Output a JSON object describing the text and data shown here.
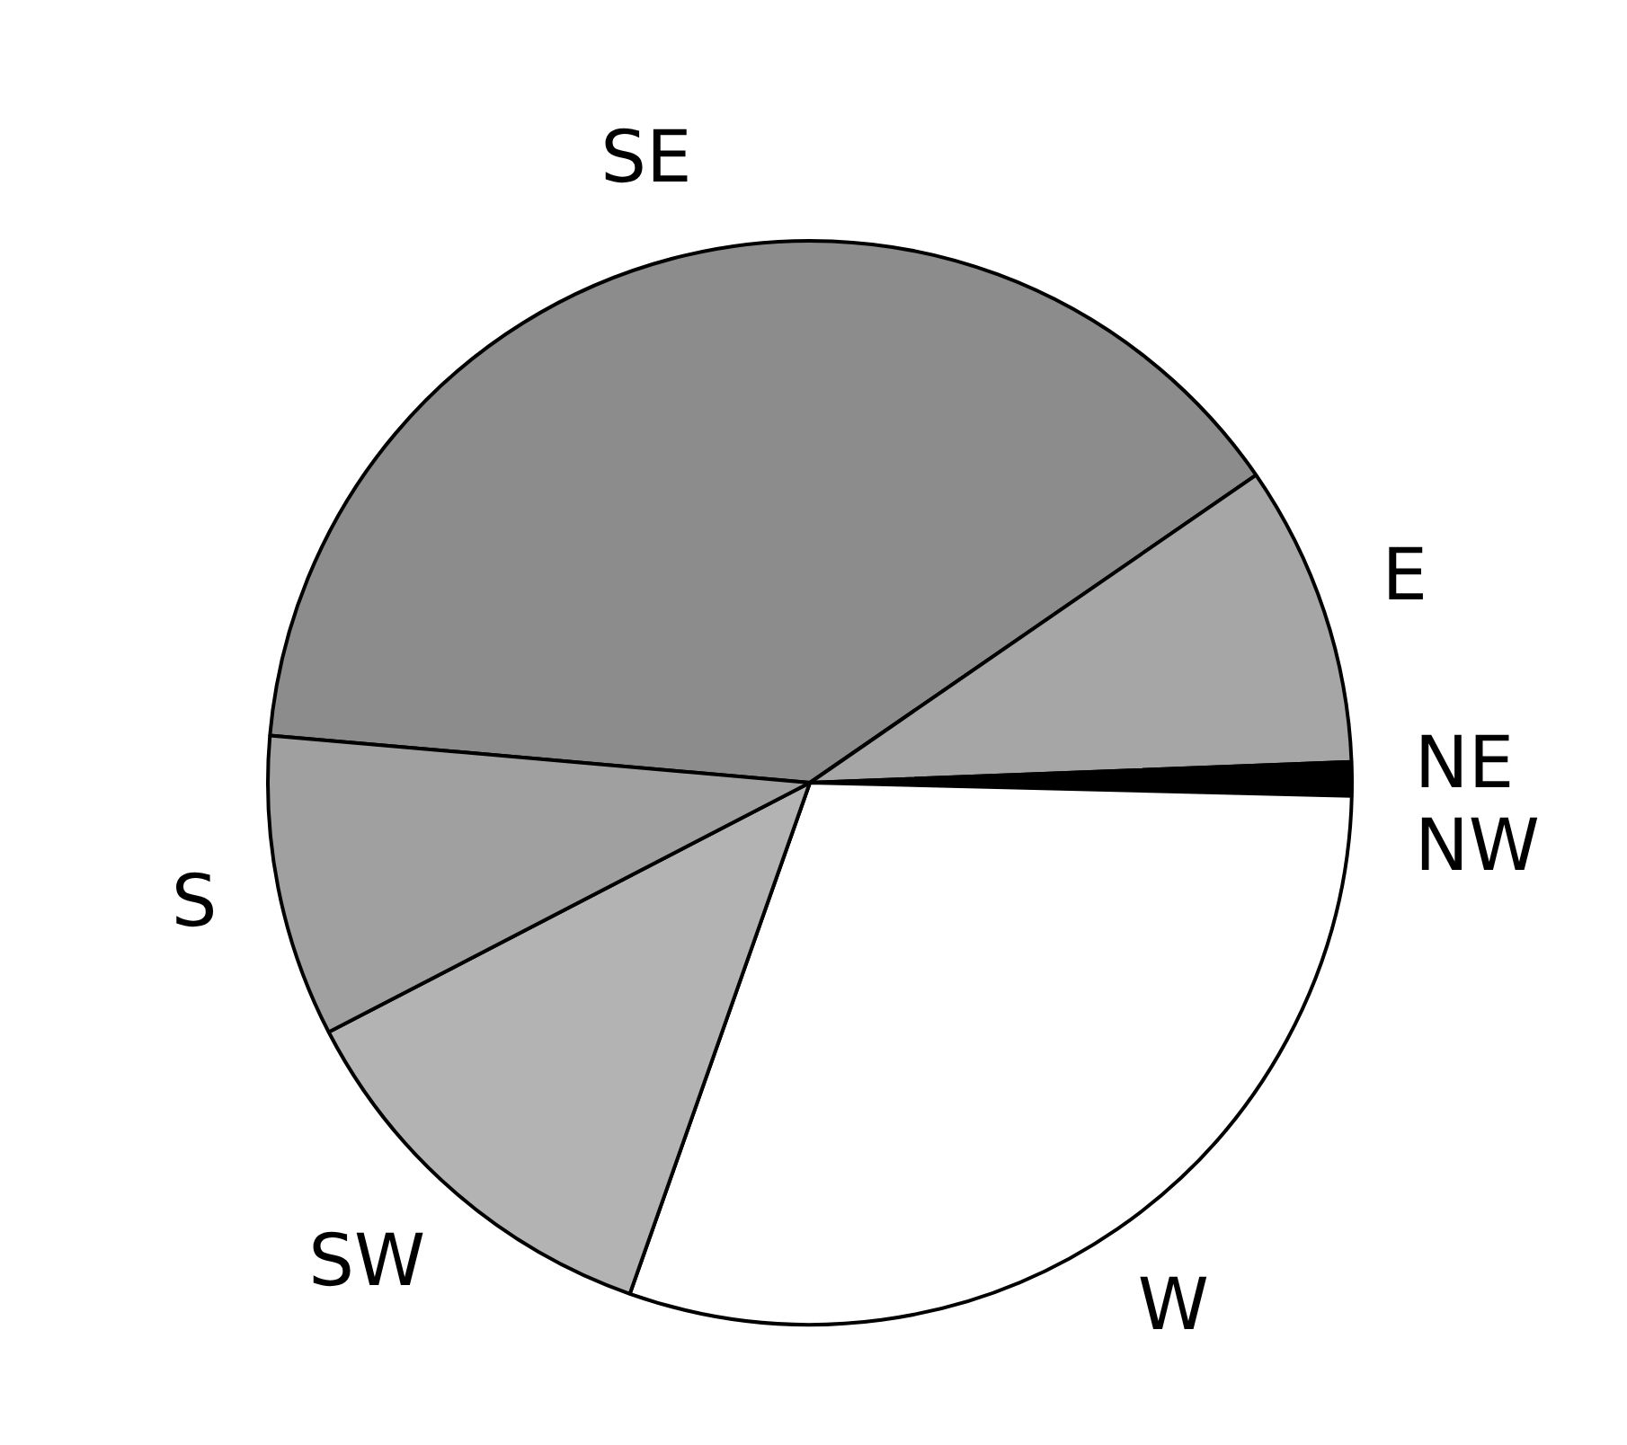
{
  "chart_data": {
    "type": "pie",
    "categories": [
      "SE",
      "E",
      "NE",
      "NW",
      "W",
      "SW",
      "S"
    ],
    "values": [
      39,
      9,
      0.5,
      0.5,
      30,
      12,
      9
    ],
    "colors": [
      "#8c8c8c",
      "#a6a6a6",
      "#000000",
      "#000000",
      "#ffffff",
      "#b3b3b3",
      "#a0a0a0"
    ],
    "legend": false
  }
}
